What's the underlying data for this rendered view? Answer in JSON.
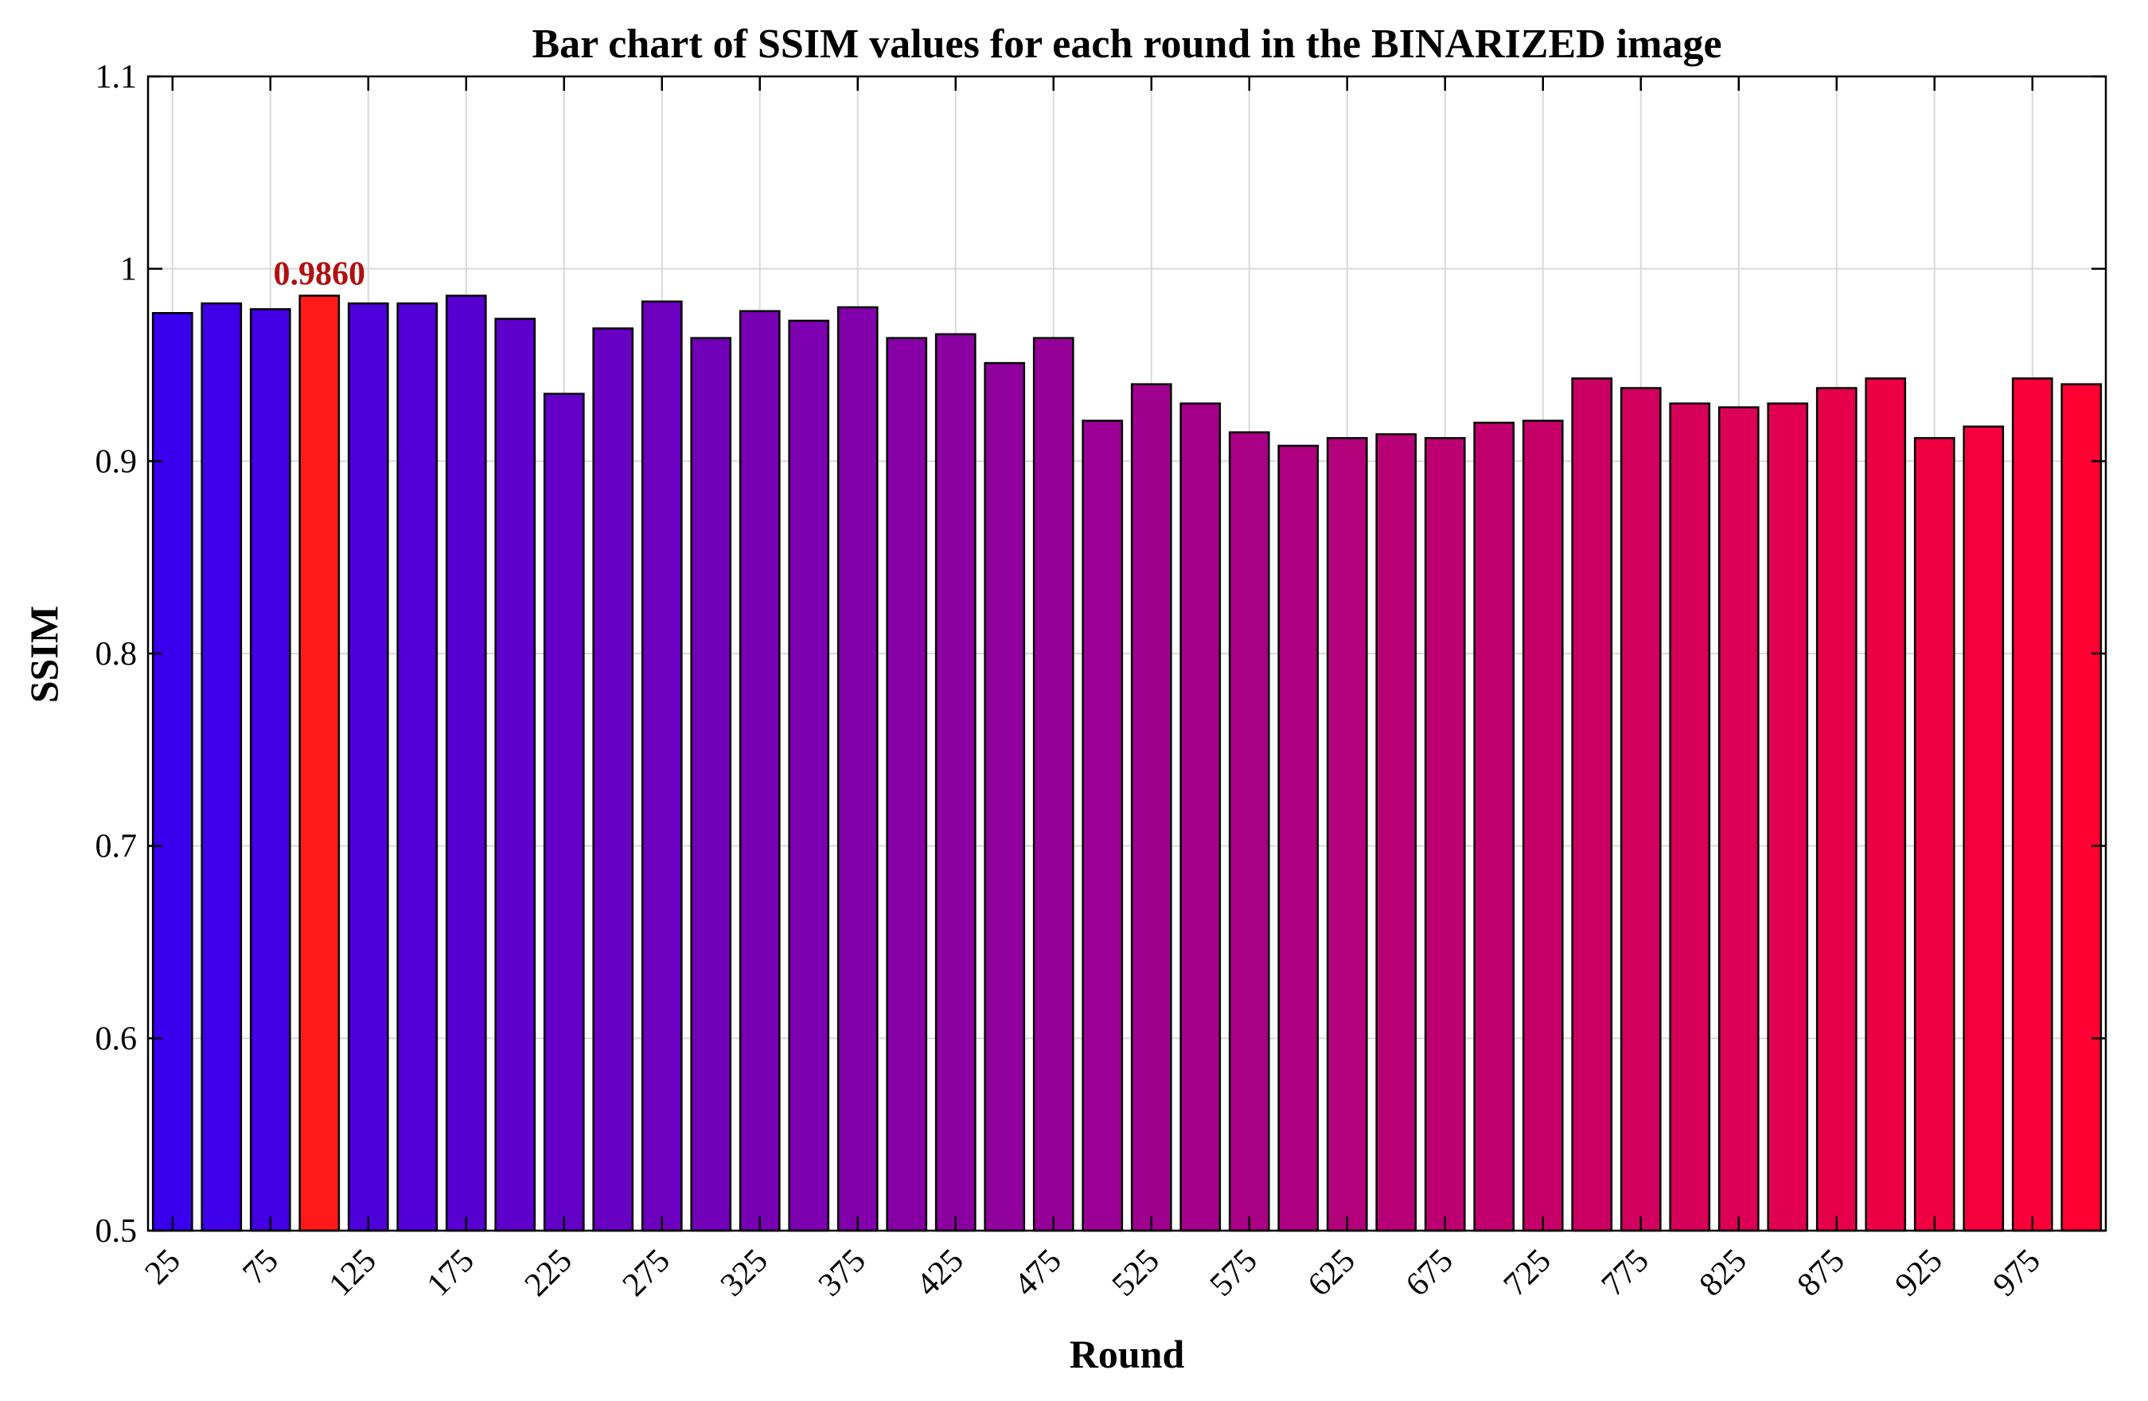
{
  "chart_data": {
    "type": "bar",
    "title": "Bar chart of SSIM values for each round in the BINARIZED image",
    "xlabel": "Round",
    "ylabel": "SSIM",
    "ylim": [
      0.5,
      1.1
    ],
    "yticks": [
      "0.5",
      "0.6",
      "0.7",
      "0.8",
      "0.9",
      "1",
      "1.1"
    ],
    "grid": true,
    "categories": [
      25,
      50,
      75,
      100,
      125,
      150,
      175,
      200,
      225,
      250,
      275,
      300,
      325,
      350,
      375,
      400,
      425,
      450,
      475,
      500,
      525,
      550,
      575,
      600,
      625,
      650,
      675,
      700,
      725,
      750,
      775,
      800,
      825,
      850,
      875,
      900,
      925,
      950,
      975,
      1000
    ],
    "xtick_labels": [
      "25",
      "75",
      "125",
      "175",
      "225",
      "275",
      "325",
      "375",
      "425",
      "475",
      "525",
      "575",
      "625",
      "675",
      "725",
      "775",
      "825",
      "875",
      "925",
      "975"
    ],
    "values": [
      0.977,
      0.982,
      0.979,
      0.986,
      0.982,
      0.982,
      0.986,
      0.974,
      0.935,
      0.969,
      0.983,
      0.964,
      0.978,
      0.973,
      0.98,
      0.964,
      0.966,
      0.951,
      0.964,
      0.921,
      0.94,
      0.93,
      0.915,
      0.908,
      0.912,
      0.914,
      0.912,
      0.92,
      0.921,
      0.943,
      0.938,
      0.93,
      0.928,
      0.93,
      0.938,
      0.943,
      0.912,
      0.918,
      0.943,
      0.94
    ],
    "highlight": {
      "index": 3,
      "label": "0.9860",
      "color": "#ff1a1a",
      "label_color": "#b01010"
    },
    "colors": {
      "gradient_start": "#3a00ee",
      "gradient_end": "#ff0033"
    }
  }
}
